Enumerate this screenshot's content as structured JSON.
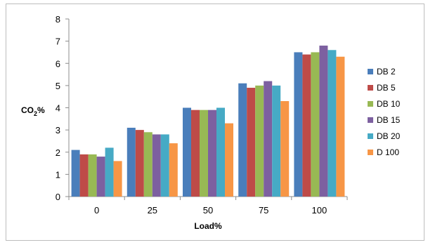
{
  "chart_data": {
    "type": "bar",
    "categories": [
      "0",
      "25",
      "50",
      "75",
      "100"
    ],
    "series": [
      {
        "name": "DB 2",
        "color": "#4a7ebb",
        "values": [
          2.1,
          3.1,
          4.0,
          5.1,
          6.5
        ]
      },
      {
        "name": "DB 5",
        "color": "#be4b48",
        "values": [
          1.9,
          3.0,
          3.9,
          4.9,
          6.4
        ]
      },
      {
        "name": "DB 10",
        "color": "#98b954",
        "values": [
          1.9,
          2.9,
          3.9,
          5.0,
          6.5
        ]
      },
      {
        "name": "DB 15",
        "color": "#7d60a0",
        "values": [
          1.8,
          2.8,
          3.9,
          5.2,
          6.8
        ]
      },
      {
        "name": "DB 20",
        "color": "#46aac5",
        "values": [
          2.2,
          2.8,
          4.0,
          5.0,
          6.6
        ]
      },
      {
        "name": "D 100",
        "color": "#f79646",
        "values": [
          1.6,
          2.4,
          3.3,
          4.3,
          6.3
        ]
      }
    ],
    "xlabel": "Load%",
    "ylabel": {
      "main": "CO",
      "sub": "2",
      "suffix": "%"
    },
    "yticks": [
      0,
      1,
      2,
      3,
      4,
      5,
      6,
      7,
      8
    ],
    "ylim": [
      0,
      8
    ],
    "grid": false,
    "legend_position": "right"
  }
}
